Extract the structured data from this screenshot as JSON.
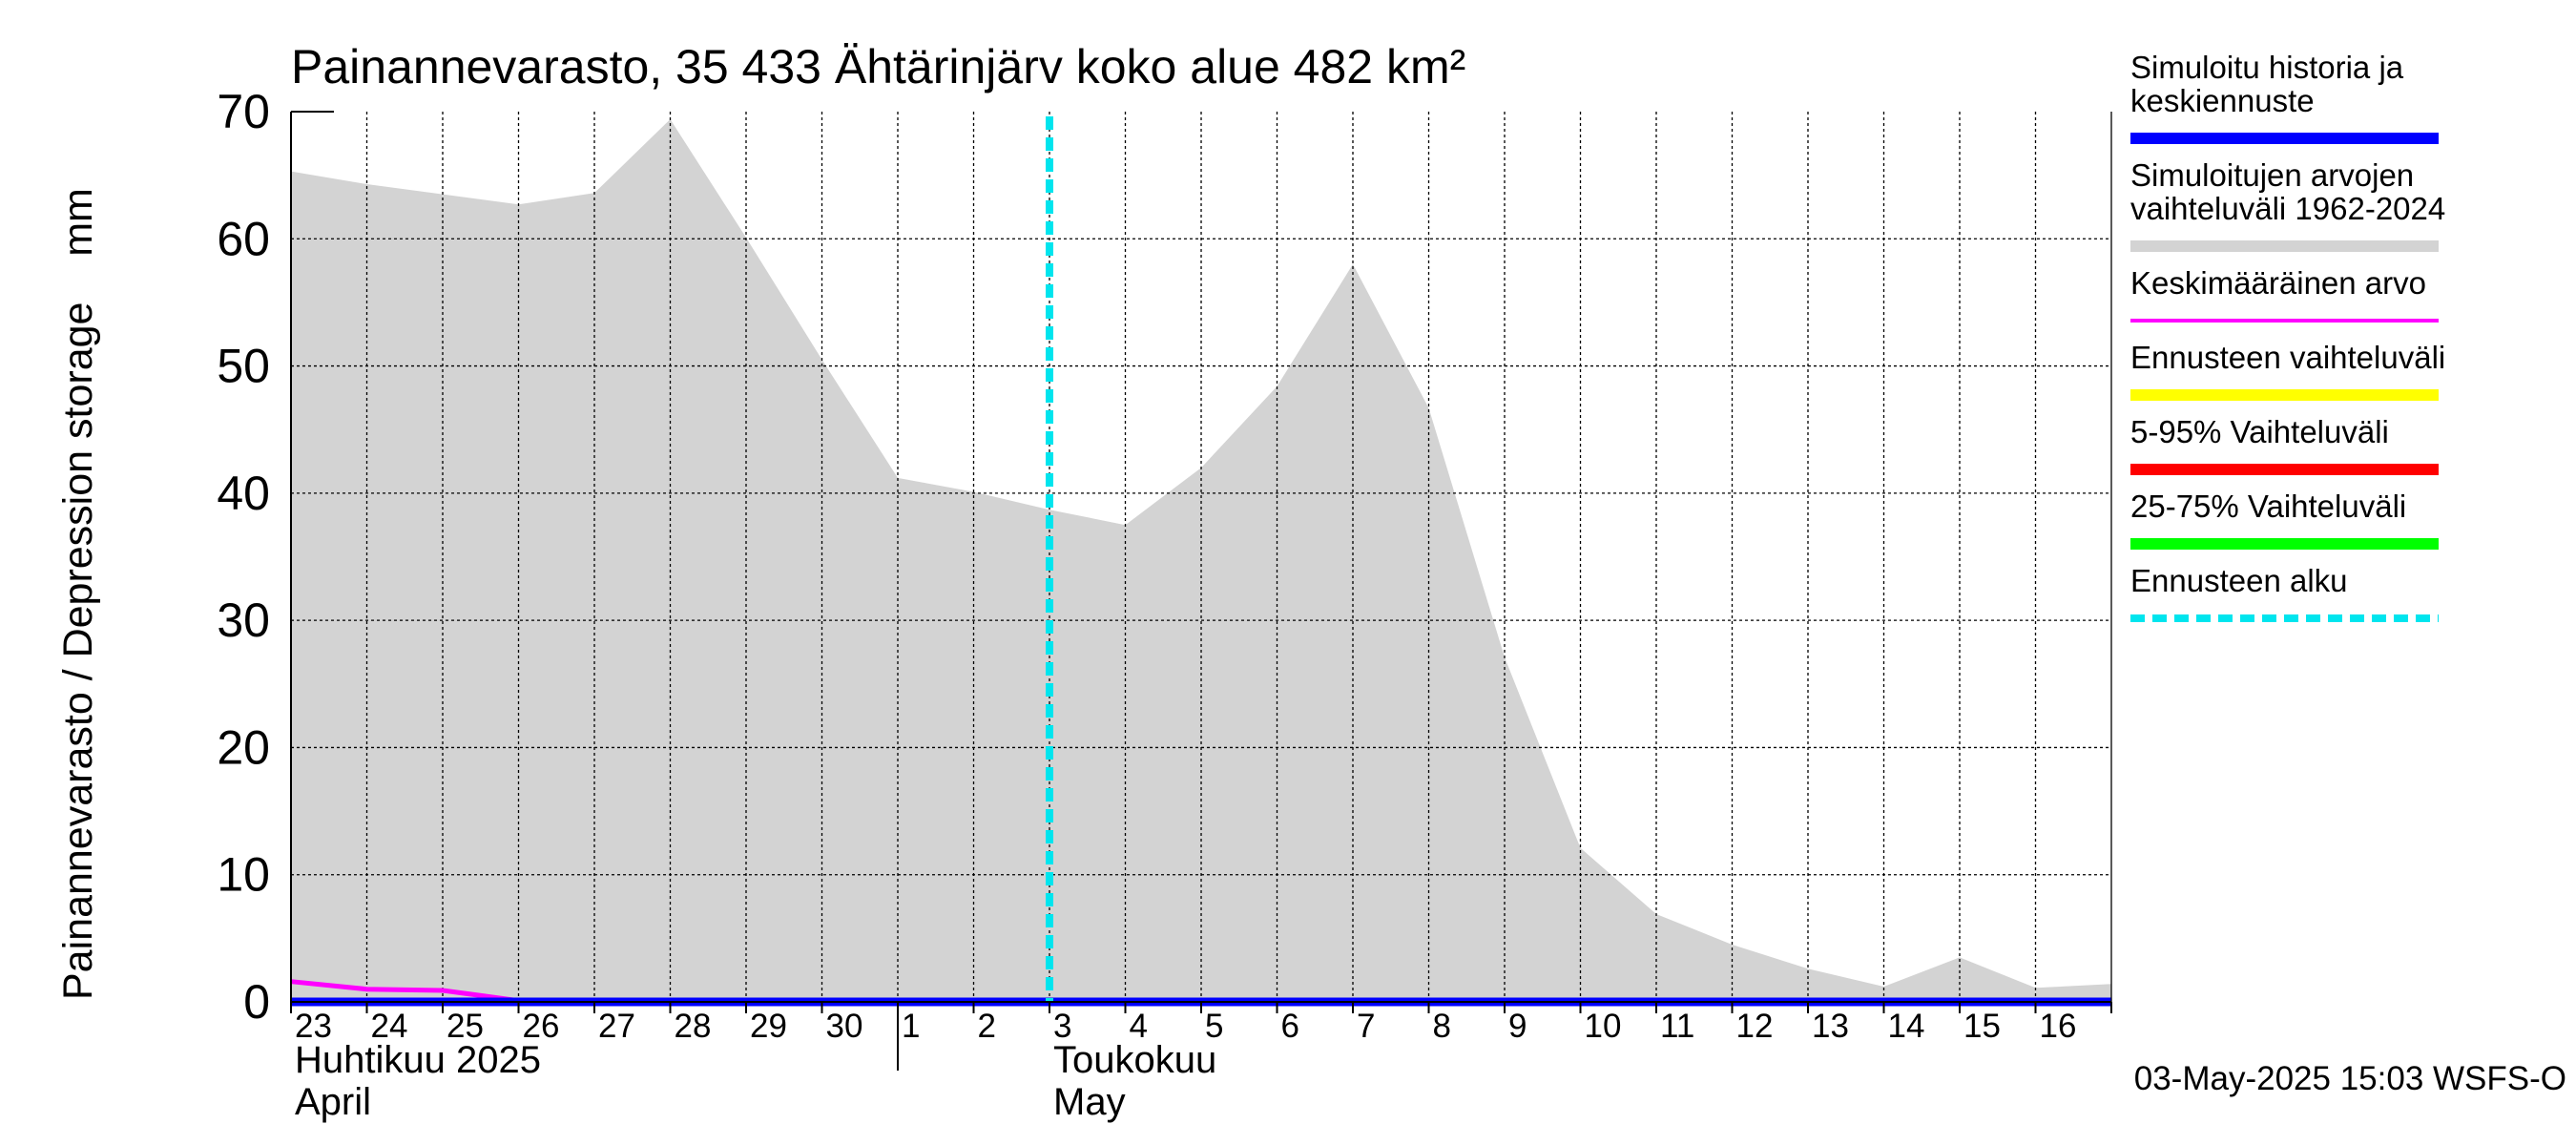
{
  "chart_data": {
    "type": "area",
    "title": "Painannevarasto, 35 433 Ähtärinjärv koko alue 482 km²",
    "ylabel": "Painannevarasto / Depression storage    mm",
    "ylim": [
      0,
      70
    ],
    "yticks": [
      "0",
      "10",
      "20",
      "30",
      "40",
      "50",
      "60",
      "70"
    ],
    "x_day_labels": [
      "23",
      "24",
      "25",
      "26",
      "27",
      "28",
      "29",
      "30",
      "1",
      "2",
      "3",
      "4",
      "5",
      "6",
      "7",
      "8",
      "9",
      "10",
      "11",
      "12",
      "13",
      "14",
      "15",
      "16"
    ],
    "x_month_labels": [
      {
        "day": "23",
        "line1": "Huhtikuu  2025",
        "line2": "April"
      },
      {
        "day": "3",
        "line1": "Toukokuu",
        "line2": "May"
      }
    ],
    "x_start": "2025-04-23",
    "x_end": "2025-05-17",
    "month_boundary": "2025-05-01",
    "grid": true,
    "forecast_start": "2025-05-03",
    "series": [
      {
        "name": "Simuloitujen arvojen vaihteluväli 1962-2024",
        "kind": "range",
        "color": "#d3d3d3",
        "x": [
          "2025-04-23",
          "2025-04-24",
          "2025-04-25",
          "2025-04-26",
          "2025-04-27",
          "2025-04-28",
          "2025-04-29",
          "2025-04-30",
          "2025-05-01",
          "2025-05-02",
          "2025-05-03",
          "2025-05-04",
          "2025-05-05",
          "2025-05-06",
          "2025-05-07",
          "2025-05-08",
          "2025-05-09",
          "2025-05-10",
          "2025-05-11",
          "2025-05-12",
          "2025-05-13",
          "2025-05-14",
          "2025-05-15",
          "2025-05-16",
          "2025-05-17"
        ],
        "upper": [
          65.3,
          64.3,
          63.5,
          62.7,
          63.6,
          69.4,
          60.1,
          50.5,
          41.2,
          40.1,
          38.7,
          37.5,
          42.0,
          48.4,
          58.0,
          46.7,
          27.1,
          12.1,
          6.9,
          4.5,
          2.6,
          1.2,
          3.5,
          1.1,
          1.4
        ],
        "lower": [
          0,
          0,
          0,
          0,
          0,
          0,
          0,
          0,
          0,
          0,
          0,
          0,
          0,
          0,
          0,
          0,
          0,
          0,
          0,
          0,
          0,
          0,
          0,
          0,
          0
        ]
      },
      {
        "name": "Keskimääräinen arvo",
        "color": "#ff00ff",
        "x": [
          "2025-04-23",
          "2025-04-24",
          "2025-04-25",
          "2025-04-26",
          "2025-04-27",
          "2025-05-17"
        ],
        "values": [
          1.6,
          1.0,
          0.9,
          0.1,
          0.0,
          0.0
        ]
      },
      {
        "name": "Simuloitu historia ja keskiennuste",
        "color": "#0000ff",
        "x": [
          "2025-04-23",
          "2025-05-03",
          "2025-05-17"
        ],
        "values": [
          0.0,
          0.0,
          0.0
        ]
      }
    ]
  },
  "legend": {
    "items": [
      {
        "line1": "Simuloitu historia ja",
        "line2": "keskiennuste",
        "color": "#0000ff",
        "style": "solid"
      },
      {
        "line1": "Simuloitujen arvojen",
        "line2": "vaihteluväli 1962-2024",
        "color": "#d3d3d3",
        "style": "solid"
      },
      {
        "line1": "Keskimääräinen arvo",
        "line2": "",
        "color": "#ff00ff",
        "style": "thin"
      },
      {
        "line1": "Ennusteen vaihteluväli",
        "line2": "",
        "color": "#ffff00",
        "style": "solid"
      },
      {
        "line1": "5-95% Vaihteluväli",
        "line2": "",
        "color": "#ff0000",
        "style": "solid"
      },
      {
        "line1": "25-75% Vaihteluväli",
        "line2": "",
        "color": "#00ff00",
        "style": "solid"
      },
      {
        "line1": "Ennusteen alku",
        "line2": "",
        "color": "#00e5ee",
        "style": "dashed"
      }
    ]
  },
  "footer": "03-May-2025 15:03 WSFS-O"
}
